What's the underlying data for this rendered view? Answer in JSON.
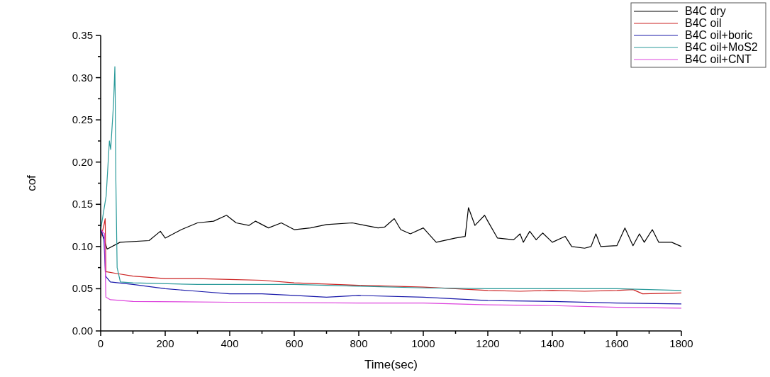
{
  "chart_data": {
    "type": "line",
    "xlabel": "Time(sec)",
    "ylabel": "cof",
    "legend": "top right",
    "grid": false,
    "marker": "none",
    "line_style": "solid",
    "xlim": [
      0,
      1800
    ],
    "ylim": [
      0,
      0.35
    ],
    "xticks": [
      0,
      {
        "value": 100,
        "label": null
      },
      200,
      {
        "value": 300,
        "label": null
      },
      400,
      {
        "value": 500,
        "label": null
      },
      600,
      {
        "value": 700,
        "label": null
      },
      800,
      {
        "value": 900,
        "label": null
      },
      1000,
      {
        "value": 1100,
        "label": null
      },
      1200,
      {
        "value": 1300,
        "label": null
      },
      1400,
      {
        "value": 1500,
        "label": null
      },
      1600,
      {
        "value": 1700,
        "label": null
      },
      1800
    ],
    "yticks": [
      {
        "value": 0,
        "label": "0.00"
      },
      {
        "value": 0.025,
        "label": null
      },
      {
        "value": 0.05,
        "label": "0.05"
      },
      {
        "value": 0.075,
        "label": null
      },
      {
        "value": 0.1,
        "label": "0.10"
      },
      {
        "value": 0.125,
        "label": null
      },
      {
        "value": 0.15,
        "label": "0.15"
      },
      {
        "value": 0.175,
        "label": null
      },
      {
        "value": 0.2,
        "label": "0.20"
      },
      {
        "value": 0.225,
        "label": null
      },
      {
        "value": 0.25,
        "label": "0.25"
      },
      {
        "value": 0.275,
        "label": null
      },
      {
        "value": 0.3,
        "label": "0.30"
      },
      {
        "value": 0.325,
        "label": null
      },
      {
        "value": 0.35,
        "label": "0.35"
      }
    ],
    "series": [
      {
        "name": "B4C dry",
        "color": "#000000",
        "x": [
          0,
          20,
          60,
          150,
          185,
          200,
          250,
          300,
          350,
          390,
          420,
          460,
          480,
          520,
          560,
          600,
          650,
          700,
          780,
          820,
          860,
          880,
          910,
          930,
          960,
          1000,
          1040,
          1100,
          1130,
          1140,
          1160,
          1190,
          1200,
          1230,
          1280,
          1300,
          1310,
          1330,
          1350,
          1370,
          1400,
          1440,
          1460,
          1500,
          1520,
          1535,
          1550,
          1600,
          1625,
          1650,
          1670,
          1685,
          1710,
          1730,
          1770,
          1800
        ],
        "values": [
          0.12,
          0.097,
          0.105,
          0.107,
          0.118,
          0.11,
          0.12,
          0.128,
          0.13,
          0.137,
          0.128,
          0.125,
          0.13,
          0.122,
          0.128,
          0.12,
          0.122,
          0.126,
          0.128,
          0.125,
          0.122,
          0.123,
          0.133,
          0.12,
          0.115,
          0.122,
          0.105,
          0.11,
          0.112,
          0.146,
          0.125,
          0.137,
          0.13,
          0.11,
          0.108,
          0.115,
          0.105,
          0.118,
          0.108,
          0.116,
          0.105,
          0.112,
          0.1,
          0.098,
          0.1,
          0.115,
          0.1,
          0.101,
          0.122,
          0.101,
          0.115,
          0.105,
          0.12,
          0.105,
          0.105,
          0.1
        ]
      },
      {
        "name": "B4C oil",
        "color": "#cc2222",
        "x": [
          0,
          10,
          14,
          16,
          20,
          50,
          100,
          200,
          300,
          400,
          500,
          600,
          800,
          1000,
          1100,
          1200,
          1300,
          1400,
          1500,
          1600,
          1650,
          1680,
          1800
        ],
        "values": [
          0.11,
          0.125,
          0.133,
          0.07,
          0.07,
          0.068,
          0.065,
          0.062,
          0.062,
          0.061,
          0.06,
          0.057,
          0.054,
          0.052,
          0.05,
          0.048,
          0.047,
          0.048,
          0.047,
          0.048,
          0.049,
          0.044,
          0.045
        ]
      },
      {
        "name": "B4C oil+boric",
        "color": "#1a1aaa",
        "x": [
          0,
          10,
          15,
          30,
          100,
          200,
          300,
          400,
          500,
          600,
          700,
          800,
          1000,
          1200,
          1400,
          1600,
          1800
        ],
        "values": [
          0.12,
          0.11,
          0.065,
          0.058,
          0.055,
          0.05,
          0.047,
          0.044,
          0.044,
          0.042,
          0.04,
          0.042,
          0.04,
          0.036,
          0.035,
          0.033,
          0.032
        ]
      },
      {
        "name": "B4C oil+MoS2",
        "color": "#2a9a9a",
        "x": [
          0,
          17,
          27,
          31,
          40,
          44,
          45,
          47,
          51,
          61,
          100,
          300,
          600,
          800,
          1000,
          1200,
          1400,
          1600,
          1800
        ],
        "values": [
          0.12,
          0.16,
          0.225,
          0.215,
          0.27,
          0.313,
          0.28,
          0.18,
          0.075,
          0.058,
          0.057,
          0.055,
          0.055,
          0.053,
          0.051,
          0.05,
          0.05,
          0.05,
          0.048
        ]
      },
      {
        "name": "B4C oil+CNT",
        "color": "#dd44dd",
        "x": [
          0,
          12,
          16,
          30,
          100,
          400,
          800,
          1000,
          1200,
          1400,
          1600,
          1800
        ],
        "values": [
          0.12,
          0.115,
          0.04,
          0.037,
          0.035,
          0.034,
          0.033,
          0.033,
          0.031,
          0.03,
          0.028,
          0.027
        ]
      }
    ]
  }
}
